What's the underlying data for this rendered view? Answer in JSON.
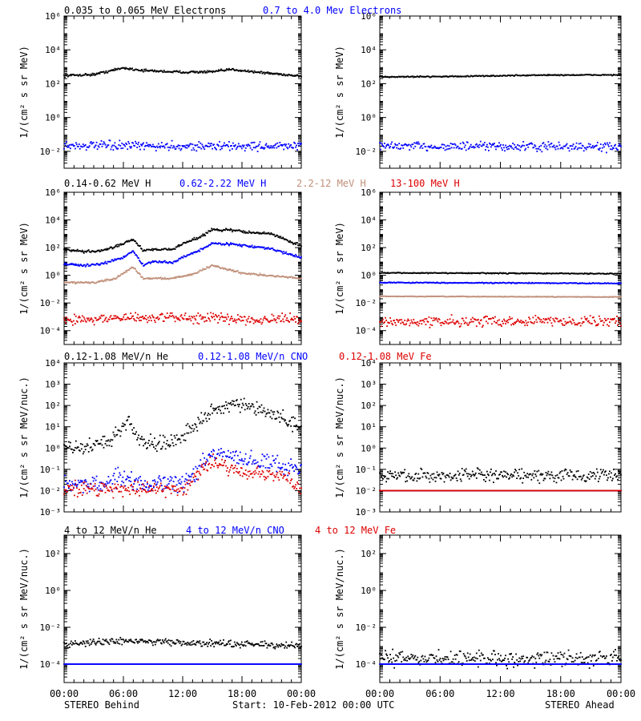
{
  "footer": {
    "left": "STEREO Behind",
    "center": "Start: 10-Feb-2012 00:00 UTC",
    "right": "STEREO Ahead"
  },
  "chart_data": [
    {
      "type": "scatter",
      "row": 0,
      "ylabel": "1/(cm² s sr MeV)",
      "log_y": true,
      "ylim": [
        0.001,
        1000000
      ],
      "yticks": [
        {
          "v": 0.01,
          "label": "10⁻²"
        },
        {
          "v": 1,
          "label": "10⁰"
        },
        {
          "v": 100,
          "label": "10²"
        },
        {
          "v": 10000,
          "label": "10⁴"
        },
        {
          "v": 1000000,
          "label": "10⁶"
        }
      ],
      "legend": [
        {
          "text": "0.035 to 0.065 MeV Electrons",
          "color": "#000000"
        },
        {
          "text": "0.7 to 4.0 Mev Electrons",
          "color": "#0000ff"
        }
      ],
      "panels": [
        {
          "side": "behind",
          "series": [
            {
              "color": "#000000",
              "jitter": 0.06,
              "points": [
                [
                  0,
                  300
                ],
                [
                  3,
                  350
                ],
                [
                  6,
                  850
                ],
                [
                  8,
                  600
                ],
                [
                  12,
                  480
                ],
                [
                  15,
                  500
                ],
                [
                  17,
                  700
                ],
                [
                  20,
                  450
                ],
                [
                  24,
                  280
                ]
              ]
            },
            {
              "color": "#0000ff",
              "jitter": 0.22,
              "points": [
                [
                  0,
                  0.022
                ],
                [
                  12,
                  0.02
                ],
                [
                  24,
                  0.02
                ]
              ]
            }
          ]
        },
        {
          "side": "ahead",
          "series": [
            {
              "color": "#000000",
              "jitter": 0.03,
              "points": [
                [
                  0,
                  250
                ],
                [
                  8,
                  270
                ],
                [
                  16,
                  320
                ],
                [
                  24,
                  330
                ]
              ]
            },
            {
              "color": "#0000ff",
              "jitter": 0.22,
              "points": [
                [
                  0,
                  0.02
                ],
                [
                  24,
                  0.018
                ]
              ]
            }
          ]
        }
      ]
    },
    {
      "type": "scatter",
      "row": 1,
      "ylabel": "1/(cm² s sr MeV)",
      "log_y": true,
      "ylim": [
        1e-05,
        1000000
      ],
      "yticks": [
        {
          "v": 0.0001,
          "label": "10⁻⁴"
        },
        {
          "v": 0.01,
          "label": "10⁻²"
        },
        {
          "v": 1,
          "label": "10⁰"
        },
        {
          "v": 100,
          "label": "10²"
        },
        {
          "v": 10000,
          "label": "10⁴"
        },
        {
          "v": 1000000,
          "label": "10⁶"
        }
      ],
      "legend": [
        {
          "text": "0.14-0.62 MeV H",
          "color": "#000000"
        },
        {
          "text": "0.62-2.22 MeV H",
          "color": "#0000ff"
        },
        {
          "text": "2.2-12 MeV H",
          "color": "#c0907a"
        },
        {
          "text": "13-100 MeV H",
          "color": "#dd0000"
        }
      ],
      "panels": [
        {
          "side": "behind",
          "series": [
            {
              "color": "#000000",
              "jitter": 0.08,
              "points": [
                [
                  0,
                  70
                ],
                [
                  2,
                  50
                ],
                [
                  4,
                  60
                ],
                [
                  5.5,
                  150
                ],
                [
                  7,
                  400
                ],
                [
                  8,
                  60
                ],
                [
                  9,
                  80
                ],
                [
                  11,
                  70
                ],
                [
                  12,
                  200
                ],
                [
                  14,
                  700
                ],
                [
                  15,
                  2000
                ],
                [
                  17,
                  1800
                ],
                [
                  19,
                  1200
                ],
                [
                  21,
                  1000
                ],
                [
                  22,
                  500
                ],
                [
                  24,
                  130
                ]
              ]
            },
            {
              "color": "#0000ff",
              "jitter": 0.07,
              "points": [
                [
                  0,
                  7
                ],
                [
                  2,
                  5
                ],
                [
                  4,
                  7
                ],
                [
                  6,
                  20
                ],
                [
                  7,
                  60
                ],
                [
                  8,
                  5
                ],
                [
                  9,
                  10
                ],
                [
                  11,
                  8
                ],
                [
                  12,
                  20
                ],
                [
                  14,
                  80
                ],
                [
                  15,
                  200
                ],
                [
                  17,
                  180
                ],
                [
                  19,
                  120
                ],
                [
                  21,
                  80
                ],
                [
                  23,
                  30
                ],
                [
                  24,
                  20
                ]
              ]
            },
            {
              "color": "#c0907a",
              "jitter": 0.06,
              "points": [
                [
                  0,
                  0.3
                ],
                [
                  3,
                  0.3
                ],
                [
                  5,
                  0.5
                ],
                [
                  7,
                  4
                ],
                [
                  8,
                  0.6
                ],
                [
                  11,
                  0.6
                ],
                [
                  13,
                  1.2
                ],
                [
                  15,
                  5
                ],
                [
                  18,
                  1.5
                ],
                [
                  21,
                  0.9
                ],
                [
                  24,
                  0.6
                ]
              ]
            },
            {
              "color": "#dd0000",
              "jitter": 0.3,
              "points": [
                [
                  0,
                  0.0006
                ],
                [
                  6,
                  0.0008
                ],
                [
                  12,
                  0.0009
                ],
                [
                  18,
                  0.0007
                ],
                [
                  24,
                  0.0006
                ]
              ]
            }
          ]
        },
        {
          "side": "ahead",
          "series": [
            {
              "color": "#000000",
              "jitter": 0.03,
              "points": [
                [
                  0,
                  1.5
                ],
                [
                  24,
                  1.3
                ]
              ]
            },
            {
              "color": "#0000ff",
              "jitter": 0.03,
              "points": [
                [
                  0,
                  0.3
                ],
                [
                  24,
                  0.26
                ]
              ]
            },
            {
              "color": "#c0907a",
              "jitter": 0.02,
              "points": [
                [
                  0,
                  0.03
                ],
                [
                  24,
                  0.027
                ]
              ]
            },
            {
              "color": "#dd0000",
              "jitter": 0.3,
              "points": [
                [
                  0,
                  0.0004
                ],
                [
                  12,
                  0.0005
                ],
                [
                  24,
                  0.0005
                ]
              ]
            }
          ]
        }
      ]
    },
    {
      "type": "scatter",
      "row": 2,
      "ylabel": "1/(cm² s sr MeV/nuc.)",
      "log_y": true,
      "ylim": [
        0.001,
        10000
      ],
      "yticks": [
        {
          "v": 0.001,
          "label": "10⁻³"
        },
        {
          "v": 0.01,
          "label": "10⁻²"
        },
        {
          "v": 0.1,
          "label": "10⁻¹"
        },
        {
          "v": 1,
          "label": "10⁰"
        },
        {
          "v": 10,
          "label": "10¹"
        },
        {
          "v": 100,
          "label": "10²"
        },
        {
          "v": 1000,
          "label": "10³"
        },
        {
          "v": 10000,
          "label": "10⁴"
        }
      ],
      "legend": [
        {
          "text": "0.12-1.08 MeV/n He",
          "color": "#000000"
        },
        {
          "text": "0.12-1.08 MeV/n CNO",
          "color": "#0000ff"
        },
        {
          "text": "0.12-1.08 MeV Fe",
          "color": "#dd0000"
        }
      ],
      "panels": [
        {
          "side": "behind",
          "series": [
            {
              "color": "#000000",
              "jitter": 0.3,
              "points": [
                [
                  0,
                  1
                ],
                [
                  2,
                  1
                ],
                [
                  3.5,
                  1.5
                ],
                [
                  5,
                  3
                ],
                [
                  6.5,
                  20
                ],
                [
                  7.5,
                  3
                ],
                [
                  9,
                  1.5
                ],
                [
                  11,
                  2
                ],
                [
                  13,
                  10
                ],
                [
                  15,
                  50
                ],
                [
                  17,
                  120
                ],
                [
                  19,
                  70
                ],
                [
                  21,
                  40
                ],
                [
                  23,
                  15
                ],
                [
                  24,
                  8
                ]
              ]
            },
            {
              "color": "#0000ff",
              "jitter": 0.35,
              "points": [
                [
                  0,
                  0.02
                ],
                [
                  4,
                  0.02
                ],
                [
                  6,
                  0.05
                ],
                [
                  8,
                  0.02
                ],
                [
                  12,
                  0.02
                ],
                [
                  13.5,
                  0.1
                ],
                [
                  15,
                  0.5
                ],
                [
                  17,
                  0.4
                ],
                [
                  19,
                  0.25
                ],
                [
                  21,
                  0.2
                ],
                [
                  24,
                  0.1
                ]
              ]
            },
            {
              "color": "#dd0000",
              "jitter": 0.3,
              "points": [
                [
                  0,
                  0.012
                ],
                [
                  6,
                  0.012
                ],
                [
                  12,
                  0.012
                ],
                [
                  14,
                  0.1
                ],
                [
                  15,
                  0.25
                ],
                [
                  17,
                  0.1
                ],
                [
                  19,
                  0.06
                ],
                [
                  22,
                  0.05
                ],
                [
                  24,
                  0.012
                ]
              ]
            }
          ]
        },
        {
          "side": "ahead",
          "series": [
            {
              "color": "#000000",
              "jitter": 0.25,
              "points": [
                [
                  0,
                  0.05
                ],
                [
                  12,
                  0.05
                ],
                [
                  24,
                  0.05
                ]
              ]
            },
            {
              "color": "#0000ff",
              "jitter": 0.0,
              "points": [
                [
                  3,
                  0.01
                ],
                [
                  24,
                  0.01
                ]
              ]
            },
            {
              "color": "#dd0000",
              "jitter": 0.0,
              "points": [
                [
                  2,
                  0.01
                ],
                [
                  24,
                  0.01
                ]
              ]
            }
          ]
        }
      ]
    },
    {
      "type": "scatter",
      "row": 3,
      "ylabel": "1/(cm² s sr MeV/nuc.)",
      "log_y": true,
      "ylim": [
        1e-05,
        1000
      ],
      "yticks": [
        {
          "v": 0.0001,
          "label": "10⁻⁴"
        },
        {
          "v": 0.01,
          "label": "10⁻²"
        },
        {
          "v": 1,
          "label": "10⁰"
        },
        {
          "v": 100,
          "label": "10²"
        }
      ],
      "legend": [
        {
          "text": "4 to 12 MeV/n He",
          "color": "#000000"
        },
        {
          "text": "4 to 12 MeV/n CNO",
          "color": "#0000ff"
        },
        {
          "text": "4 to 12 MeV Fe",
          "color": "#dd0000"
        }
      ],
      "panels": [
        {
          "side": "behind",
          "series": [
            {
              "color": "#000000",
              "jitter": 0.15,
              "points": [
                [
                  0,
                  0.0012
                ],
                [
                  6,
                  0.0018
                ],
                [
                  12,
                  0.0015
                ],
                [
                  18,
                  0.0012
                ],
                [
                  24,
                  0.001
                ]
              ]
            },
            {
              "color": "#0000ff",
              "jitter": 0.0,
              "points": [
                [
                  0,
                  0.0001
                ],
                [
                  24,
                  0.0001
                ]
              ]
            }
          ]
        },
        {
          "side": "ahead",
          "series": [
            {
              "color": "#000000",
              "jitter": 0.35,
              "points": [
                [
                  0,
                  0.0002
                ],
                [
                  12,
                  0.0002
                ],
                [
                  24,
                  0.0002
                ]
              ]
            },
            {
              "color": "#0000ff",
              "jitter": 0.0,
              "points": [
                [
                  0,
                  0.0001
                ],
                [
                  24,
                  0.0001
                ]
              ]
            }
          ]
        }
      ]
    }
  ],
  "x_axis": {
    "label_rows_at": 3,
    "range_hours": [
      0,
      24
    ],
    "ticks": [
      {
        "h": 0,
        "label": "00:00"
      },
      {
        "h": 6,
        "label": "06:00"
      },
      {
        "h": 12,
        "label": "12:00"
      },
      {
        "h": 18,
        "label": "18:00"
      },
      {
        "h": 24,
        "label": "00:00"
      }
    ]
  }
}
